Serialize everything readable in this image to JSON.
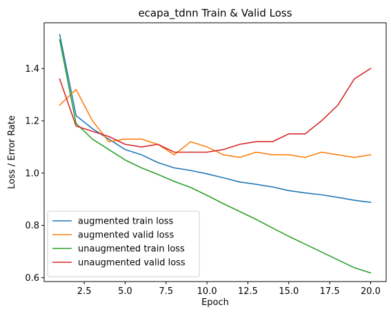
{
  "chart_data": {
    "type": "line",
    "title": "ecapa_tdnn Train & Valid Loss",
    "xlabel": "Epoch",
    "ylabel": "Loss / Error Rate",
    "xlim": [
      0.05,
      20.95
    ],
    "ylim": [
      0.585,
      1.575
    ],
    "xticks": [
      2.5,
      5.0,
      7.5,
      10.0,
      12.5,
      15.0,
      17.5,
      20.0
    ],
    "xtick_labels": [
      "2.5",
      "5.0",
      "7.5",
      "10.0",
      "12.5",
      "15.0",
      "17.5",
      "20.0"
    ],
    "yticks": [
      0.6,
      0.8,
      1.0,
      1.2,
      1.4
    ],
    "ytick_labels": [
      "0.6",
      "0.8",
      "1.0",
      "1.2",
      "1.4"
    ],
    "grid": false,
    "legend_position": "bottom-left",
    "x": [
      1,
      2,
      3,
      4,
      5,
      6,
      7,
      8,
      9,
      10,
      11,
      12,
      13,
      14,
      15,
      16,
      17,
      18,
      19,
      20
    ],
    "series": [
      {
        "name": "augmented train loss",
        "color": "#1f77b4",
        "values": [
          1.53,
          1.22,
          1.17,
          1.13,
          1.09,
          1.07,
          1.04,
          1.02,
          1.01,
          0.997,
          0.982,
          0.966,
          0.957,
          0.947,
          0.933,
          0.924,
          0.917,
          0.907,
          0.896,
          0.888
        ]
      },
      {
        "name": "augmented valid loss",
        "color": "#ff7f0e",
        "values": [
          1.26,
          1.32,
          1.2,
          1.12,
          1.13,
          1.13,
          1.11,
          1.07,
          1.12,
          1.1,
          1.07,
          1.06,
          1.08,
          1.07,
          1.07,
          1.06,
          1.08,
          1.07,
          1.06,
          1.07
        ]
      },
      {
        "name": "unaugmented train loss",
        "color": "#2ca02c",
        "values": [
          1.51,
          1.19,
          1.13,
          1.09,
          1.05,
          1.02,
          0.995,
          0.968,
          0.945,
          0.915,
          0.883,
          0.853,
          0.823,
          0.79,
          0.758,
          0.728,
          0.698,
          0.668,
          0.638,
          0.618
        ]
      },
      {
        "name": "unaugmented valid loss",
        "color": "#d62728",
        "values": [
          1.36,
          1.18,
          1.16,
          1.14,
          1.11,
          1.1,
          1.11,
          1.08,
          1.08,
          1.08,
          1.09,
          1.11,
          1.12,
          1.12,
          1.15,
          1.15,
          1.2,
          1.26,
          1.36,
          1.4
        ]
      }
    ]
  }
}
